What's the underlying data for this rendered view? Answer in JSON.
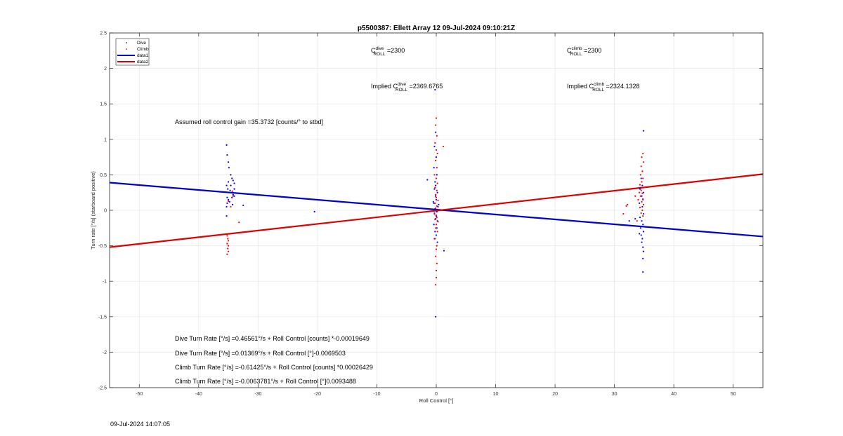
{
  "chart_data": {
    "type": "scatter",
    "title": "p5500387: Ellett Array 12 09-Jul-2024 09:10:21Z",
    "xlabel": "Roll Control [°]",
    "ylabel": "Turn rate [°/s] (starboard positive)",
    "xlim": [
      -55,
      55
    ],
    "ylim": [
      -2.5,
      2.5
    ],
    "xticks": [
      -50,
      -40,
      -30,
      -20,
      -10,
      0,
      10,
      20,
      30,
      40,
      50
    ],
    "yticks": [
      -2.5,
      -2,
      -1.5,
      -1,
      -0.5,
      0,
      0.5,
      1,
      1.5,
      2,
      2.5
    ],
    "xtick_labels": [
      "-50",
      "-40",
      "-30",
      "-20",
      "-10",
      "0",
      "10",
      "20",
      "30",
      "40",
      "50"
    ],
    "ytick_labels": [
      "-2.5",
      "-2",
      "-1.5",
      "-1",
      "-0.5",
      "0",
      "0.5",
      "1",
      "1.5",
      "2",
      "2.5"
    ],
    "grid": true,
    "legend_position": "top-left",
    "series": [
      {
        "name": "Dive",
        "kind": "points",
        "color": "#0000ff",
        "points": [
          [
            -35.3,
            0.92
          ],
          [
            -35.2,
            0.78
          ],
          [
            -35.0,
            0.68
          ],
          [
            -34.9,
            0.6
          ],
          [
            -34.6,
            0.5
          ],
          [
            -34.4,
            0.45
          ],
          [
            -34.2,
            0.42
          ],
          [
            -34.0,
            0.38
          ],
          [
            -35.3,
            0.35
          ],
          [
            -35.1,
            0.3
          ],
          [
            -34.7,
            0.28
          ],
          [
            -34.5,
            0.25
          ],
          [
            -34.2,
            0.22
          ],
          [
            -34.0,
            0.2
          ],
          [
            -35.2,
            0.18
          ],
          [
            -35.0,
            0.15
          ],
          [
            -34.8,
            0.12
          ],
          [
            -35.2,
            0.1
          ],
          [
            -34.3,
            0.08
          ],
          [
            -35.3,
            0.05
          ],
          [
            -34.0,
            0.3
          ],
          [
            -34.6,
            0.35
          ],
          [
            -35.0,
            0.4
          ],
          [
            -34.4,
            0.18
          ],
          [
            -35.3,
            -0.08
          ],
          [
            -32.5,
            0.07
          ],
          [
            -20.5,
            -0.02
          ],
          [
            -0.2,
            1.7
          ],
          [
            -0.1,
            1.1
          ],
          [
            -0.3,
            0.9
          ],
          [
            0.0,
            0.75
          ],
          [
            -0.4,
            0.6
          ],
          [
            0.1,
            0.5
          ],
          [
            -0.2,
            0.4
          ],
          [
            -0.3,
            0.3
          ],
          [
            0.2,
            0.25
          ],
          [
            -0.1,
            0.2
          ],
          [
            0.0,
            0.15
          ],
          [
            -0.4,
            0.1
          ],
          [
            0.3,
            0.05
          ],
          [
            -0.2,
            0.02
          ],
          [
            0.1,
            -0.02
          ],
          [
            -0.3,
            -0.05
          ],
          [
            0.0,
            -0.08
          ],
          [
            -0.1,
            -0.12
          ],
          [
            0.2,
            -0.15
          ],
          [
            -0.4,
            -0.2
          ],
          [
            0.1,
            -0.25
          ],
          [
            -0.2,
            -0.3
          ],
          [
            0.0,
            -0.35
          ],
          [
            -0.3,
            -0.4
          ],
          [
            0.2,
            -0.45
          ],
          [
            -0.1,
            0.35
          ],
          [
            -0.5,
            0.12
          ],
          [
            0.4,
            0.08
          ],
          [
            -1.5,
            0.43
          ],
          [
            1.3,
            -0.57
          ],
          [
            -0.1,
            -1.5
          ],
          [
            34.5,
            0.45
          ],
          [
            34.7,
            0.35
          ],
          [
            34.3,
            0.3
          ],
          [
            34.9,
            0.25
          ],
          [
            34.6,
            0.2
          ],
          [
            34.8,
            0.15
          ],
          [
            34.2,
            0.1
          ],
          [
            34.7,
            0.05
          ],
          [
            34.9,
            -0.05
          ],
          [
            34.3,
            -0.1
          ],
          [
            34.6,
            -0.15
          ],
          [
            34.8,
            -0.2
          ],
          [
            34.4,
            -0.25
          ],
          [
            34.9,
            -0.3
          ],
          [
            34.5,
            -0.35
          ],
          [
            34.7,
            -0.4
          ],
          [
            34.6,
            -0.45
          ],
          [
            34.8,
            -0.52
          ],
          [
            34.9,
            -0.58
          ],
          [
            34.8,
            -0.68
          ],
          [
            34.8,
            -0.87
          ],
          [
            34.9,
            1.12
          ],
          [
            33.5,
            -0.12
          ],
          [
            32.5,
            -0.15
          ],
          [
            34.2,
            -0.33
          ]
        ]
      },
      {
        "name": "Climb",
        "kind": "points",
        "color": "#ff0000",
        "points": [
          [
            -35.2,
            -0.36
          ],
          [
            -35.1,
            -0.4
          ],
          [
            -35.0,
            -0.43
          ],
          [
            -35.2,
            -0.47
          ],
          [
            -35.0,
            -0.5
          ],
          [
            -35.1,
            -0.54
          ],
          [
            -35.0,
            -0.58
          ],
          [
            -35.2,
            -0.62
          ],
          [
            -33.2,
            -0.17
          ],
          [
            -34.2,
            0.2
          ],
          [
            -34.6,
            0.05
          ],
          [
            -35.0,
            0.13
          ],
          [
            -34.3,
            0.27
          ],
          [
            0.0,
            1.3
          ],
          [
            -0.1,
            1.2
          ],
          [
            0.1,
            1.05
          ],
          [
            -0.2,
            0.95
          ],
          [
            0.0,
            0.85
          ],
          [
            0.2,
            0.8
          ],
          [
            -0.1,
            0.7
          ],
          [
            0.1,
            0.6
          ],
          [
            -0.3,
            0.5
          ],
          [
            0.0,
            0.45
          ],
          [
            0.2,
            0.38
          ],
          [
            -0.2,
            0.32
          ],
          [
            0.1,
            0.28
          ],
          [
            -0.1,
            0.22
          ],
          [
            0.0,
            0.18
          ],
          [
            0.3,
            0.14
          ],
          [
            -0.2,
            0.1
          ],
          [
            0.1,
            0.06
          ],
          [
            -0.1,
            0.03
          ],
          [
            0.2,
            -0.01
          ],
          [
            -0.3,
            -0.04
          ],
          [
            0.0,
            -0.07
          ],
          [
            0.1,
            -0.1
          ],
          [
            -0.2,
            -0.13
          ],
          [
            0.3,
            -0.16
          ],
          [
            0.0,
            -0.2
          ],
          [
            -0.1,
            -0.25
          ],
          [
            0.2,
            -0.3
          ],
          [
            -0.2,
            -0.4
          ],
          [
            0.1,
            -0.5
          ],
          [
            0.0,
            -0.55
          ],
          [
            -0.1,
            -0.65
          ],
          [
            0.1,
            -0.75
          ],
          [
            0.0,
            -0.85
          ],
          [
            0.0,
            -0.95
          ],
          [
            -0.1,
            -1.05
          ],
          [
            1.2,
            0.9
          ],
          [
            34.8,
            0.8
          ],
          [
            34.6,
            0.75
          ],
          [
            34.9,
            0.68
          ],
          [
            34.5,
            0.62
          ],
          [
            34.7,
            0.55
          ],
          [
            34.4,
            0.5
          ],
          [
            34.8,
            0.45
          ],
          [
            34.6,
            0.4
          ],
          [
            34.3,
            0.36
          ],
          [
            34.9,
            0.32
          ],
          [
            34.5,
            0.28
          ],
          [
            34.7,
            0.24
          ],
          [
            34.4,
            0.2
          ],
          [
            34.8,
            0.16
          ],
          [
            34.6,
            0.12
          ],
          [
            34.9,
            0.08
          ],
          [
            34.3,
            0.04
          ],
          [
            34.7,
            0.0
          ],
          [
            34.5,
            -0.04
          ],
          [
            34.8,
            -0.08
          ],
          [
            33.5,
            0.2
          ],
          [
            32.2,
            0.08
          ],
          [
            32.0,
            0.06
          ],
          [
            31.5,
            -0.05
          ],
          [
            33.8,
            -0.15
          ],
          [
            34.0,
            0.15
          ],
          [
            34.2,
            0.25
          ]
        ]
      },
      {
        "name": "data1",
        "kind": "line",
        "color": "#0000cc",
        "points": [
          [
            -55,
            0.39
          ],
          [
            55,
            -0.37
          ]
        ]
      },
      {
        "name": "data2",
        "kind": "line",
        "color": "#dd0000",
        "points": [
          [
            -55,
            -0.52
          ],
          [
            55,
            0.51
          ]
        ]
      }
    ],
    "annotations": {
      "c_dive": {
        "base": "C",
        "sup": "dive",
        "sub": "ROLL",
        "value": " =2300"
      },
      "c_climb": {
        "base": "C",
        "sup": "climb",
        "sub": "ROLL",
        "value": " =2300"
      },
      "implied_dive": {
        "base": "Implied C",
        "sup": "dive",
        "sub": "ROLL",
        "value": " =2369.6765"
      },
      "implied_climb": {
        "base": "Implied C",
        "sup": "climb",
        "sub": "ROLL",
        "value": " =2324.1328"
      },
      "assumed_gain": "Assumed roll control gain =35.3732 [counts/° to stbd]",
      "eq_dive_counts": "Dive Turn Rate [°/s] =0.46561°/s + Roll Control [counts] *-0.00019649",
      "eq_dive_deg": "Dive Turn Rate [°/s] =0.01369°/s + Roll Control [°]-0.0069503",
      "eq_climb_counts": "Climb Turn Rate [°/s] =-0.61425°/s + Roll Control [counts] *0.00026429",
      "eq_climb_deg": "Climb Turn Rate [°/s] =-0.0063781°/s + Roll Control [°]0.0093488"
    }
  },
  "footer": {
    "timestamp": "09-Jul-2024 14:07:05"
  }
}
